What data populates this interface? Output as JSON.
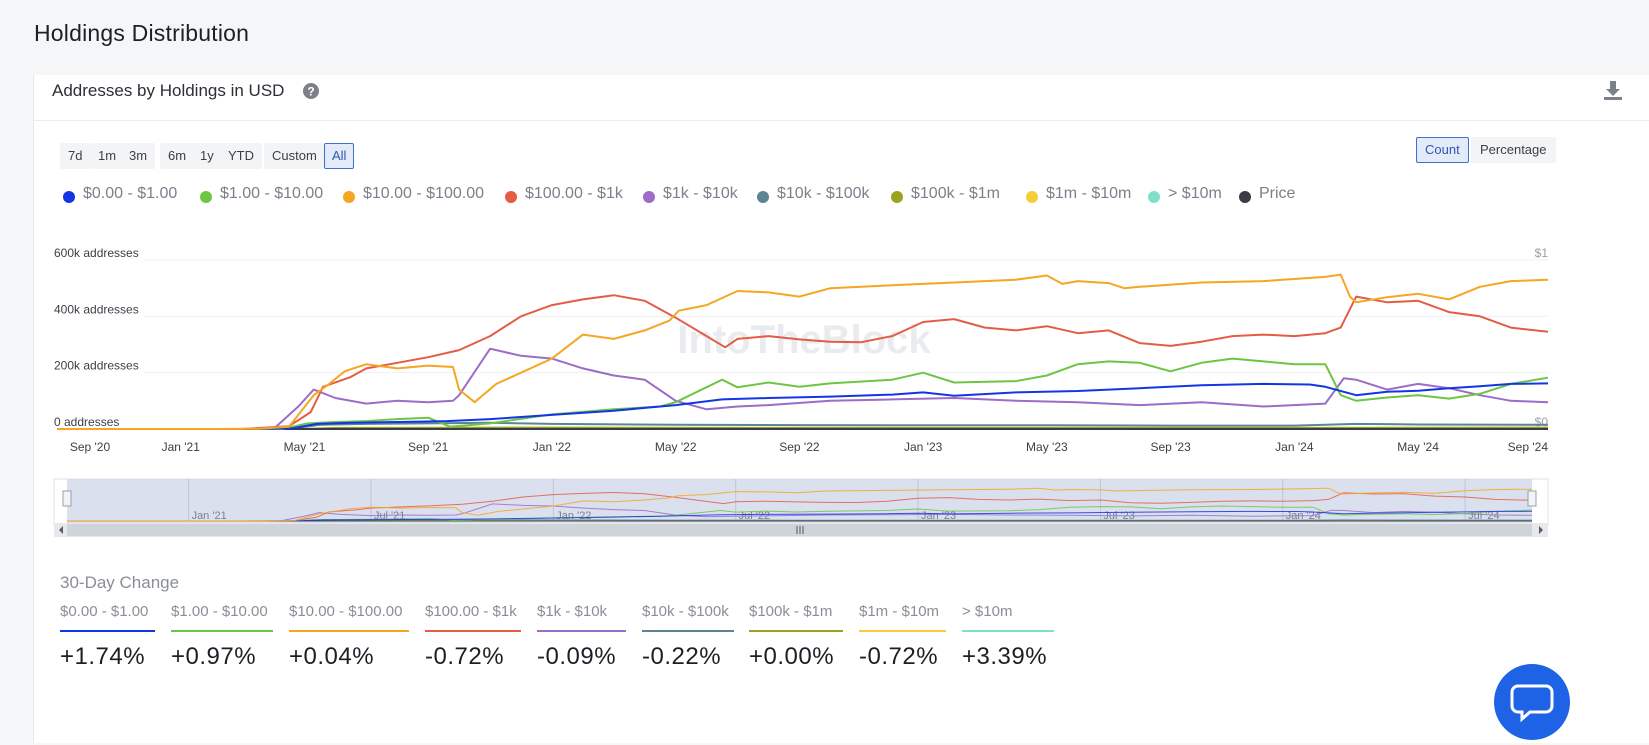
{
  "page": {
    "title": "Holdings Distribution"
  },
  "card": {
    "title": "Addresses by Holdings in USD",
    "help_icon": "question-circle-icon",
    "download_icon": "download-icon"
  },
  "range_buttons": [
    "7d",
    "1m",
    "3m",
    "6m",
    "1y",
    "YTD",
    "Custom",
    "All"
  ],
  "active_range": "All",
  "mode_buttons": [
    "Count",
    "Percentage"
  ],
  "active_mode": "Count",
  "colors": {
    "s0": "#1335e6",
    "s1": "#6cc644",
    "s2": "#f5a623",
    "s3": "#e35d45",
    "s4": "#9b6cc8",
    "s5": "#5b8596",
    "s6": "#9aa21f",
    "s7": "#f7cd3b",
    "s8": "#7ee0c8",
    "price": "#3a3d46"
  },
  "watermark": "IntoTheBlock",
  "chart_data": {
    "type": "line",
    "title": "Addresses by Holdings in USD",
    "ylabel": "addresses",
    "ylim": [
      0,
      600000
    ],
    "y_ticks": [
      "0 addresses",
      "200k addresses",
      "400k addresses",
      "600k addresses"
    ],
    "y_tick_values": [
      0,
      200000,
      400000,
      600000
    ],
    "right_ticks": [
      "$0",
      "$1"
    ],
    "x_ticks": [
      "Sep '20",
      "Jan '21",
      "May '21",
      "Sep '21",
      "Jan '22",
      "May '22",
      "Sep '22",
      "Jan '23",
      "May '23",
      "Sep '23",
      "Jan '24",
      "May '24",
      "Sep '24"
    ],
    "x_tick_months": [
      0,
      4,
      8,
      12,
      16,
      20,
      24,
      28,
      32,
      36,
      40,
      44,
      48
    ],
    "xlim": [
      0,
      48.2
    ],
    "navigator_ticks": [
      "Jan '21",
      "Jul '21",
      "Jan '22",
      "Jul '22",
      "Jan '23",
      "Jul '23",
      "Jan '24",
      "Jul '24"
    ],
    "navigator_tick_months": [
      4,
      10,
      16,
      22,
      28,
      34,
      40,
      46
    ],
    "series": [
      {
        "name": "$0.00 - $1.00",
        "key": "s0",
        "points": [
          [
            0,
            0
          ],
          [
            6,
            0
          ],
          [
            7.6,
            2000
          ],
          [
            8.4,
            18000
          ],
          [
            9.5,
            22000
          ],
          [
            11,
            25000
          ],
          [
            12.6,
            28000
          ],
          [
            14,
            35000
          ],
          [
            16,
            50000
          ],
          [
            18,
            65000
          ],
          [
            19.5,
            80000
          ],
          [
            20,
            85000
          ],
          [
            21.5,
            105000
          ],
          [
            23,
            110000
          ],
          [
            25,
            115000
          ],
          [
            27,
            122000
          ],
          [
            28,
            130000
          ],
          [
            29,
            118000
          ],
          [
            31,
            130000
          ],
          [
            33,
            135000
          ],
          [
            35,
            145000
          ],
          [
            37,
            155000
          ],
          [
            39,
            160000
          ],
          [
            40.5,
            158000
          ],
          [
            41,
            150000
          ],
          [
            42,
            120000
          ],
          [
            43,
            132000
          ],
          [
            44,
            136000
          ],
          [
            45,
            145000
          ],
          [
            46,
            152000
          ],
          [
            47,
            160000
          ],
          [
            48.2,
            162000
          ]
        ]
      },
      {
        "name": "$1.00 - $10.00",
        "key": "s1",
        "points": [
          [
            0,
            0
          ],
          [
            7.3,
            0
          ],
          [
            8.1,
            20000
          ],
          [
            9,
            25000
          ],
          [
            10,
            28000
          ],
          [
            11,
            35000
          ],
          [
            12,
            40000
          ],
          [
            12.7,
            8000
          ],
          [
            14,
            20000
          ],
          [
            16,
            52000
          ],
          [
            18,
            70000
          ],
          [
            19.5,
            80000
          ],
          [
            20,
            95000
          ],
          [
            21.5,
            175000
          ],
          [
            22,
            148000
          ],
          [
            23,
            165000
          ],
          [
            24,
            150000
          ],
          [
            25,
            162000
          ],
          [
            27,
            175000
          ],
          [
            28,
            200000
          ],
          [
            29,
            165000
          ],
          [
            31,
            170000
          ],
          [
            32,
            190000
          ],
          [
            33,
            230000
          ],
          [
            34,
            240000
          ],
          [
            35,
            235000
          ],
          [
            36,
            205000
          ],
          [
            37,
            235000
          ],
          [
            38,
            250000
          ],
          [
            39,
            240000
          ],
          [
            40,
            230000
          ],
          [
            41,
            230000
          ],
          [
            41.5,
            120000
          ],
          [
            42,
            100000
          ],
          [
            43,
            112000
          ],
          [
            44,
            120000
          ],
          [
            45,
            108000
          ],
          [
            46,
            125000
          ],
          [
            47,
            160000
          ],
          [
            48.2,
            182000
          ]
        ]
      },
      {
        "name": "$10.00 - $100.00",
        "key": "s2",
        "points": [
          [
            0,
            0
          ],
          [
            5,
            0
          ],
          [
            6.5,
            1000
          ],
          [
            7.5,
            8000
          ],
          [
            8.3,
            120000
          ],
          [
            8.8,
            160000
          ],
          [
            9.3,
            205000
          ],
          [
            10,
            230000
          ],
          [
            11,
            215000
          ],
          [
            12,
            225000
          ],
          [
            12.8,
            220000
          ],
          [
            13,
            140000
          ],
          [
            13.5,
            95000
          ],
          [
            14.2,
            160000
          ],
          [
            15,
            200000
          ],
          [
            16,
            250000
          ],
          [
            17,
            335000
          ],
          [
            18,
            320000
          ],
          [
            19,
            350000
          ],
          [
            19.8,
            385000
          ],
          [
            20.1,
            420000
          ],
          [
            21,
            440000
          ],
          [
            22,
            490000
          ],
          [
            23,
            485000
          ],
          [
            24,
            470000
          ],
          [
            25,
            500000
          ],
          [
            27,
            510000
          ],
          [
            29,
            520000
          ],
          [
            31,
            530000
          ],
          [
            32,
            545000
          ],
          [
            32.5,
            515000
          ],
          [
            33,
            525000
          ],
          [
            34,
            518000
          ],
          [
            34.5,
            500000
          ],
          [
            35,
            505000
          ],
          [
            37,
            520000
          ],
          [
            39,
            525000
          ],
          [
            41,
            540000
          ],
          [
            41.5,
            548000
          ],
          [
            41.8,
            470000
          ],
          [
            42,
            450000
          ],
          [
            43,
            468000
          ],
          [
            44,
            480000
          ],
          [
            45,
            460000
          ],
          [
            46,
            505000
          ],
          [
            47,
            525000
          ],
          [
            48.2,
            530000
          ]
        ]
      },
      {
        "name": "$100.00 - $1k",
        "key": "s3",
        "points": [
          [
            0,
            0
          ],
          [
            6,
            0
          ],
          [
            7.5,
            10000
          ],
          [
            8.2,
            60000
          ],
          [
            8.6,
            150000
          ],
          [
            9.5,
            185000
          ],
          [
            10,
            215000
          ],
          [
            11,
            235000
          ],
          [
            12,
            255000
          ],
          [
            13,
            280000
          ],
          [
            14,
            330000
          ],
          [
            15,
            400000
          ],
          [
            16,
            440000
          ],
          [
            17,
            460000
          ],
          [
            18,
            475000
          ],
          [
            19,
            455000
          ],
          [
            20,
            395000
          ],
          [
            21,
            330000
          ],
          [
            21.6,
            290000
          ],
          [
            22,
            320000
          ],
          [
            23,
            330000
          ],
          [
            24,
            318000
          ],
          [
            25,
            310000
          ],
          [
            26,
            308000
          ],
          [
            27,
            330000
          ],
          [
            28,
            380000
          ],
          [
            29,
            390000
          ],
          [
            30,
            360000
          ],
          [
            31,
            350000
          ],
          [
            32,
            365000
          ],
          [
            33,
            340000
          ],
          [
            34,
            350000
          ],
          [
            35,
            305000
          ],
          [
            36,
            295000
          ],
          [
            37,
            310000
          ],
          [
            38,
            330000
          ],
          [
            39,
            335000
          ],
          [
            40,
            330000
          ],
          [
            41,
            340000
          ],
          [
            41.5,
            360000
          ],
          [
            42,
            470000
          ],
          [
            43,
            450000
          ],
          [
            44,
            455000
          ],
          [
            45,
            415000
          ],
          [
            46,
            400000
          ],
          [
            47,
            360000
          ],
          [
            48.2,
            345000
          ]
        ]
      },
      {
        "name": "$1k - $10k",
        "key": "s4",
        "points": [
          [
            0,
            0
          ],
          [
            7,
            0
          ],
          [
            7.8,
            80000
          ],
          [
            8.3,
            140000
          ],
          [
            9,
            110000
          ],
          [
            10,
            90000
          ],
          [
            11,
            100000
          ],
          [
            12,
            95000
          ],
          [
            12.8,
            100000
          ],
          [
            13,
            120000
          ],
          [
            14,
            285000
          ],
          [
            15,
            260000
          ],
          [
            16,
            250000
          ],
          [
            17,
            215000
          ],
          [
            18,
            190000
          ],
          [
            19,
            175000
          ],
          [
            20,
            100000
          ],
          [
            21,
            70000
          ],
          [
            22,
            80000
          ],
          [
            23,
            85000
          ],
          [
            25,
            100000
          ],
          [
            27,
            105000
          ],
          [
            29,
            110000
          ],
          [
            31,
            100000
          ],
          [
            33,
            95000
          ],
          [
            35,
            85000
          ],
          [
            37,
            95000
          ],
          [
            39,
            80000
          ],
          [
            41,
            90000
          ],
          [
            41.6,
            180000
          ],
          [
            42,
            175000
          ],
          [
            43,
            140000
          ],
          [
            44,
            160000
          ],
          [
            45,
            145000
          ],
          [
            46,
            120000
          ],
          [
            47,
            100000
          ],
          [
            48.2,
            95000
          ]
        ]
      },
      {
        "name": "$10k - $100k",
        "key": "s5",
        "points": [
          [
            0,
            0
          ],
          [
            7.5,
            0
          ],
          [
            8.5,
            15000
          ],
          [
            10,
            18000
          ],
          [
            12,
            20000
          ],
          [
            14,
            22000
          ],
          [
            16,
            18000
          ],
          [
            20,
            15000
          ],
          [
            24,
            14000
          ],
          [
            28,
            13000
          ],
          [
            32,
            13000
          ],
          [
            36,
            12000
          ],
          [
            40,
            12000
          ],
          [
            42,
            18000
          ],
          [
            44,
            16000
          ],
          [
            48.2,
            15000
          ]
        ]
      },
      {
        "name": "$100k - $1m",
        "key": "s6",
        "points": [
          [
            0,
            0
          ],
          [
            8,
            0
          ],
          [
            9,
            4000
          ],
          [
            16,
            5000
          ],
          [
            24,
            4000
          ],
          [
            32,
            4000
          ],
          [
            40,
            4000
          ],
          [
            48.2,
            5000
          ]
        ]
      },
      {
        "name": "$1m - $10m",
        "key": "s7",
        "points": [
          [
            0,
            0
          ],
          [
            8,
            0
          ],
          [
            9,
            1500
          ],
          [
            16,
            2000
          ],
          [
            24,
            1500
          ],
          [
            32,
            1500
          ],
          [
            40,
            1500
          ],
          [
            48.2,
            2000
          ]
        ]
      },
      {
        "name": "> $10m",
        "key": "s8",
        "points": [
          [
            0,
            0
          ],
          [
            8,
            0
          ],
          [
            9,
            800
          ],
          [
            16,
            1000
          ],
          [
            24,
            800
          ],
          [
            32,
            800
          ],
          [
            40,
            800
          ],
          [
            48.2,
            1000
          ]
        ]
      },
      {
        "name": "Price",
        "key": "price",
        "points": [
          [
            0,
            0
          ],
          [
            48.2,
            0
          ]
        ]
      }
    ]
  },
  "changes": {
    "title": "30-Day Change",
    "items": [
      {
        "label": "$0.00 - $1.00",
        "value": "+1.74%",
        "key": "s0"
      },
      {
        "label": "$1.00 - $10.00",
        "value": "+0.97%",
        "key": "s1"
      },
      {
        "label": "$10.00 - $100.00",
        "value": "+0.04%",
        "key": "s2"
      },
      {
        "label": "$100.00 - $1k",
        "value": "-0.72%",
        "key": "s3"
      },
      {
        "label": "$1k - $10k",
        "value": "-0.09%",
        "key": "s4"
      },
      {
        "label": "$10k - $100k",
        "value": "-0.22%",
        "key": "s5"
      },
      {
        "label": "$100k - $1m",
        "value": "+0.00%",
        "key": "s6"
      },
      {
        "label": "$1m - $10m",
        "value": "-0.72%",
        "key": "s7"
      },
      {
        "label": "> $10m",
        "value": "+3.39%",
        "key": "s8"
      }
    ]
  },
  "chat": {
    "icon": "chat-icon"
  }
}
